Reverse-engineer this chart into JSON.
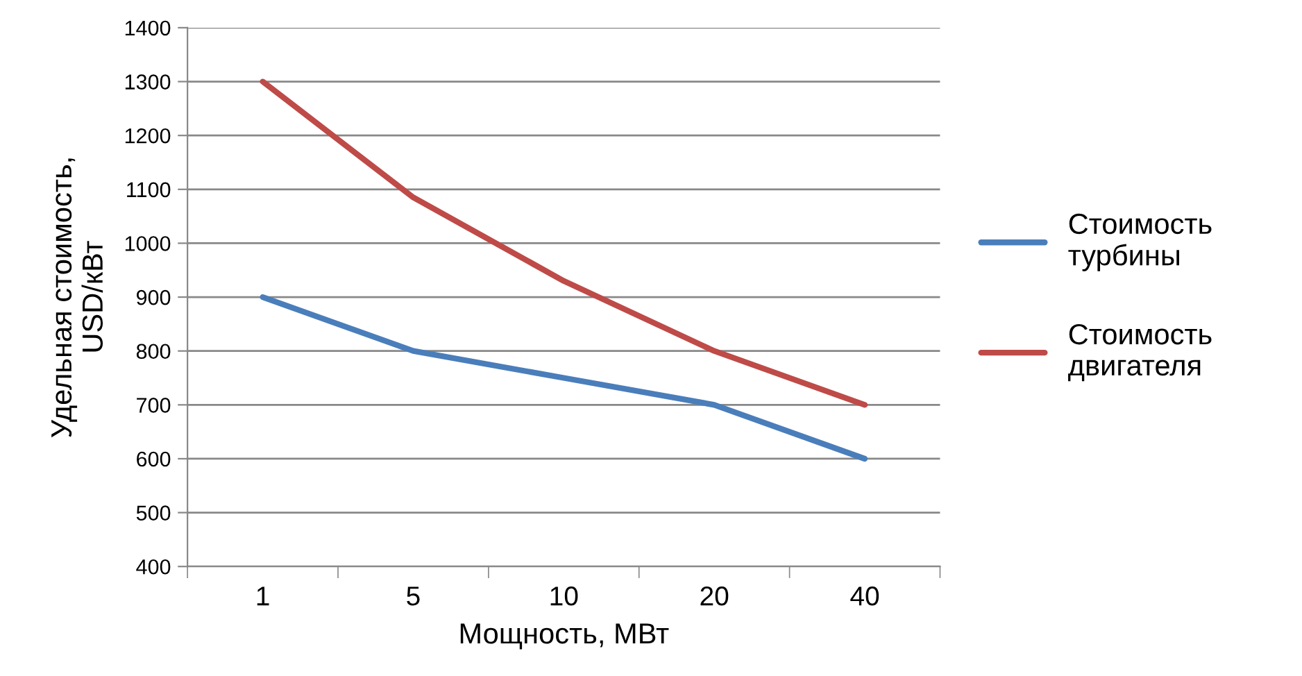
{
  "chart_data": {
    "type": "line",
    "xlabel": "Мощность, МВт",
    "ylabel": "Удельная стоимость,\nUSD/кВт",
    "categories": [
      "1",
      "5",
      "10",
      "20",
      "40"
    ],
    "series": [
      {
        "name": "Стоимость\nтурбины",
        "color": "#4a7ebb",
        "values": [
          900,
          800,
          750,
          700,
          600
        ]
      },
      {
        "name": "Стоимость\nдвигателя",
        "color": "#be4b48",
        "values": [
          1300,
          1085,
          930,
          800,
          700
        ]
      }
    ],
    "ylim": [
      400,
      1400
    ],
    "yticks": [
      400,
      500,
      600,
      700,
      800,
      900,
      1000,
      1100,
      1200,
      1300,
      1400
    ],
    "grid": "y",
    "legend": "right",
    "marker": "none",
    "line_style": "solid"
  }
}
